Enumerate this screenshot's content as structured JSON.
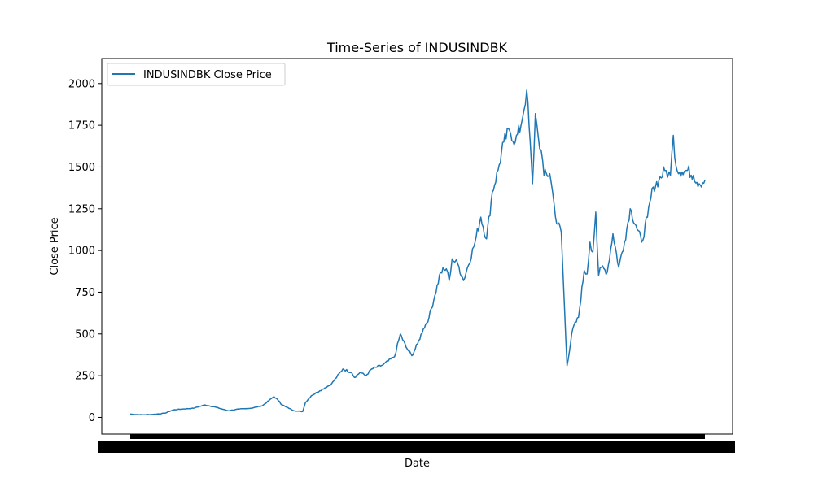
{
  "chart_data": {
    "type": "line",
    "title": "Time-Series of INDUSINDBK",
    "xlabel": "Date",
    "ylabel": "Close Price",
    "ylim": [
      -100,
      2150
    ],
    "yticks": [
      0,
      250,
      500,
      750,
      1000,
      1250,
      1500,
      1750,
      2000
    ],
    "xticks_unreadable_overlapping_dates": true,
    "grid": false,
    "legend_position": "top-left",
    "series": [
      {
        "name": "INDUSINDBK Close Price",
        "color": "#1f77b4",
        "x": [
          0.0,
          0.02,
          0.04,
          0.06,
          0.075,
          0.09,
          0.11,
          0.13,
          0.15,
          0.17,
          0.19,
          0.21,
          0.23,
          0.25,
          0.26,
          0.262,
          0.27,
          0.285,
          0.3,
          0.305,
          0.315,
          0.33,
          0.35,
          0.37,
          0.385,
          0.39,
          0.4,
          0.41,
          0.42,
          0.44,
          0.46,
          0.47,
          0.48,
          0.49,
          0.5,
          0.51,
          0.52,
          0.53,
          0.54,
          0.55,
          0.555,
          0.56,
          0.57,
          0.58,
          0.6,
          0.61,
          0.62,
          0.63,
          0.64,
          0.65,
          0.66,
          0.67,
          0.68,
          0.69,
          0.7,
          0.705,
          0.71,
          0.715,
          0.72,
          0.73,
          0.735,
          0.74,
          0.75,
          0.76,
          0.77,
          0.78,
          0.79,
          0.795,
          0.8,
          0.805,
          0.81,
          0.815,
          0.82,
          0.83,
          0.84,
          0.85,
          0.86,
          0.87,
          0.88,
          0.89,
          0.9,
          0.91,
          0.92,
          0.93,
          0.94,
          0.945,
          0.95,
          0.96,
          0.97,
          0.98,
          0.99,
          1.0
        ],
        "values": [
          20,
          15,
          18,
          25,
          45,
          50,
          55,
          75,
          60,
          40,
          50,
          55,
          70,
          125,
          95,
          80,
          65,
          40,
          35,
          90,
          130,
          160,
          200,
          290,
          270,
          240,
          270,
          250,
          290,
          315,
          365,
          500,
          420,
          370,
          440,
          530,
          600,
          730,
          870,
          890,
          820,
          950,
          920,
          820,
          1050,
          1200,
          1070,
          1350,
          1480,
          1650,
          1720,
          1650,
          1750,
          1960,
          1400,
          1820,
          1680,
          1600,
          1450,
          1460,
          1350,
          1200,
          1110,
          310,
          530,
          600,
          880,
          860,
          1050,
          990,
          1230,
          850,
          900,
          870,
          1100,
          900,
          1050,
          1250,
          1150,
          1050,
          1200,
          1380,
          1420,
          1480,
          1450,
          1690,
          1500,
          1470,
          1480,
          1450,
          1400,
          1420
        ]
      }
    ]
  }
}
